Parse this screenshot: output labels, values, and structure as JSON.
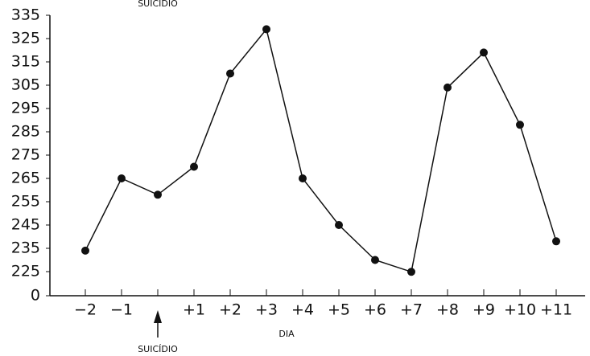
{
  "chart_data": {
    "type": "line",
    "annotations": [
      "SUICÍDIO",
      "SUICÍDIO"
    ],
    "x_label": "DIA",
    "categories": [
      "−2",
      "−1",
      null,
      "+1",
      "+2",
      "+3",
      "+4",
      "+5",
      "+6",
      "+7",
      "+8",
      "+9",
      "+10",
      "+11"
    ],
    "series": [
      {
        "color": "#111111",
        "values": [
          234,
          265,
          258,
          270,
          310,
          329,
          265,
          245,
          230,
          223,
          304,
          319,
          288,
          238
        ]
      }
    ],
    "ylim": [
      0,
      335
    ],
    "axis_break": [
      0,
      225
    ],
    "yticks": [
      0,
      225,
      235,
      245,
      255,
      265,
      275,
      285,
      295,
      305,
      315,
      325,
      335
    ]
  }
}
